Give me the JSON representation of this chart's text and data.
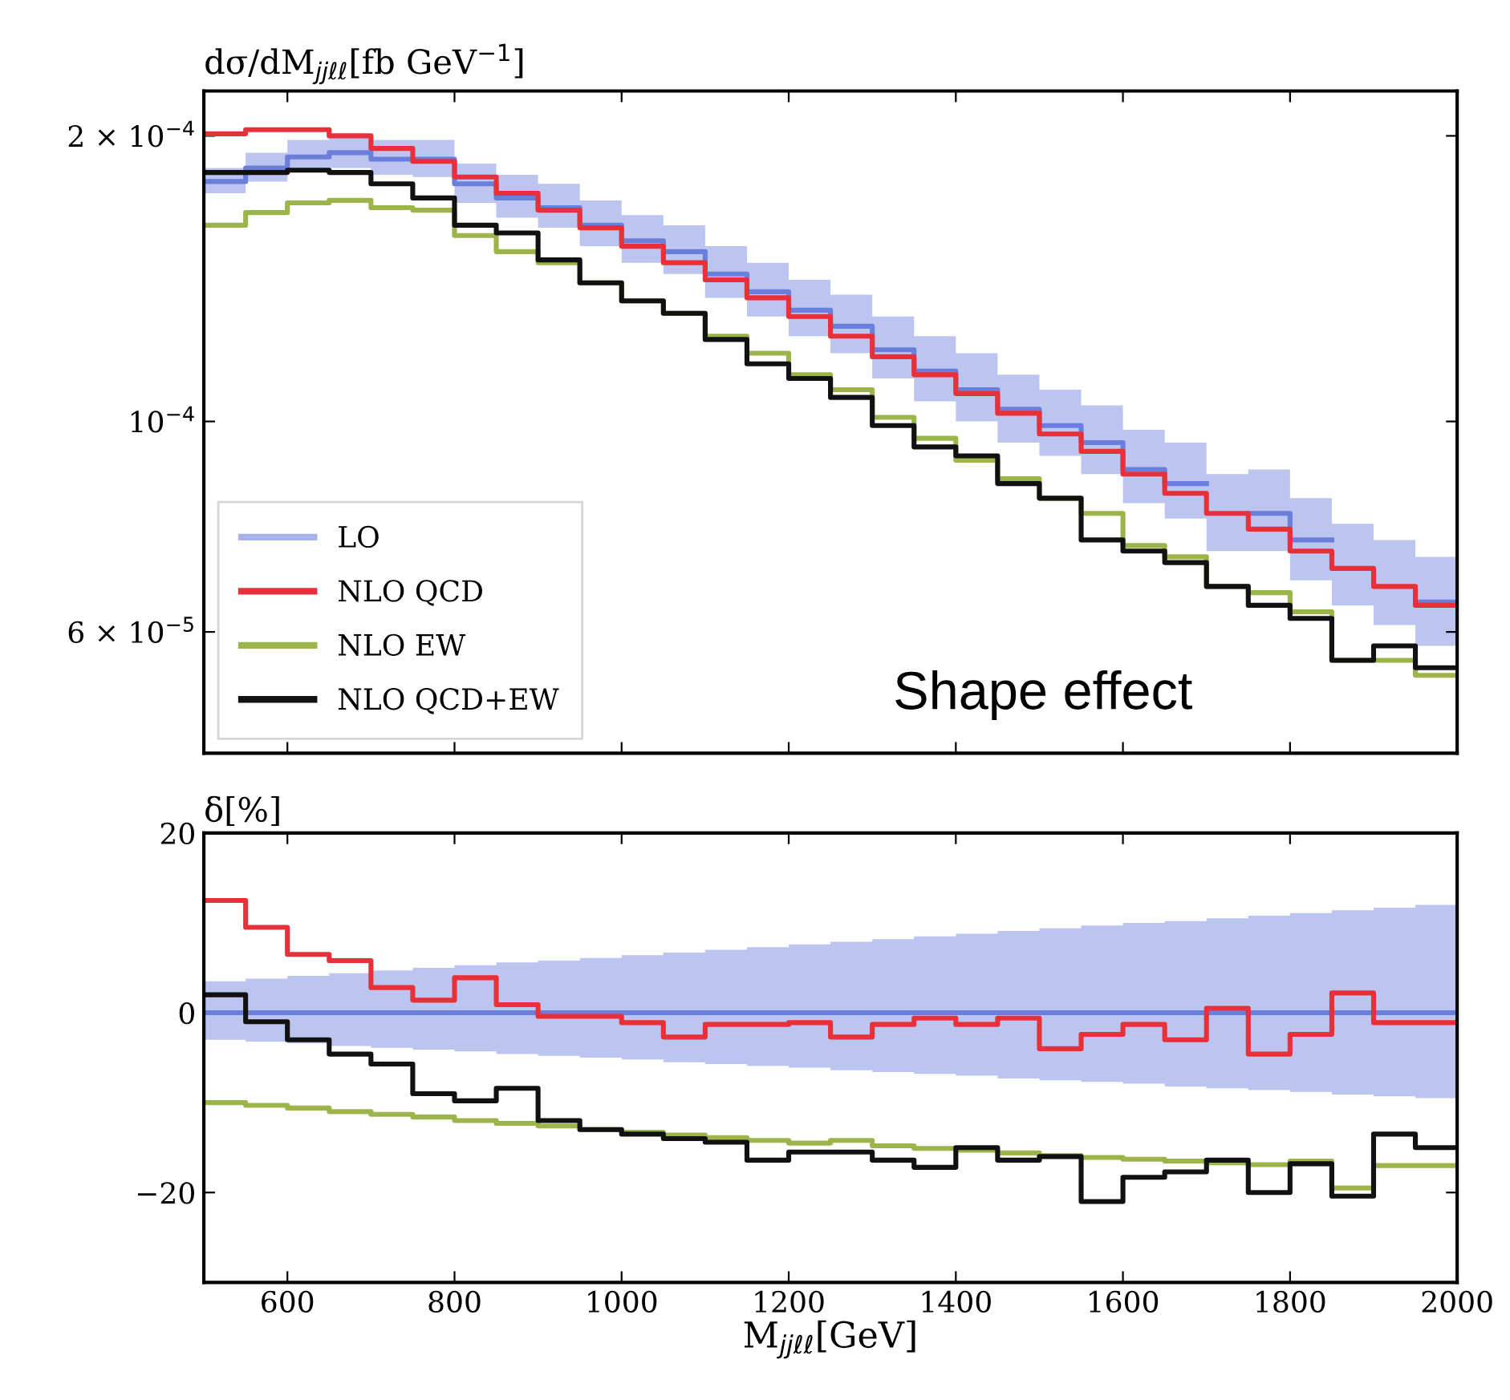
{
  "chart_data": [
    {
      "type": "step",
      "ylabel": "dσ/dM$_{jjℓℓ}$[fb GeV$^{−1}$]",
      "log": "y",
      "legend": "bottom left",
      "tick_labels": "y",
      "annotations": [
        "Shape effect"
      ],
      "x": [
        500,
        550,
        600,
        650,
        700,
        750,
        800,
        850,
        900,
        950,
        1000,
        1050,
        1100,
        1150,
        1200,
        1250,
        1300,
        1350,
        1400,
        1450,
        1500,
        1550,
        1600,
        1650,
        1700,
        1750,
        1800,
        1850,
        1900,
        1950,
        2000
      ],
      "xlim": [
        500,
        2000
      ],
      "xticks": [
        600,
        800,
        1000,
        1200,
        1400,
        1600,
        1800,
        2000
      ],
      "ylim": [
        4.47e-05,
        0.000223
      ],
      "yticks": [
        {
          "value": 6e-05,
          "label": "6 × 10$^{−5}$"
        },
        {
          "value": 0.0001,
          "label": "10$^{−4}$"
        },
        {
          "value": 0.0002,
          "label": "2 × 10$^{−4}$"
        }
      ],
      "series": [
        {
          "name": "LO",
          "color": "#6a7fdb",
          "values": [
            0.000179,
            0.000185,
            0.00019,
            0.000192,
            0.000189,
            0.000189,
            0.000178,
            0.000172,
            0.000168,
            0.000161,
            0.000155,
            0.000151,
            0.000143,
            0.000137,
            0.000131,
            0.000126,
            0.000119,
            0.000113,
            0.000108,
            0.000103,
            9.9e-05,
            9.5e-05,
            8.9e-05,
            8.6e-05,
            null,
            8e-05,
            7.5e-05,
            null,
            null,
            6.45e-05,
            6.45e-05
          ],
          "upper": [
            0.000185,
            0.000192,
            0.000198,
            0.0002,
            0.000198,
            0.000198,
            0.000187,
            0.000182,
            0.000178,
            0.000171,
            0.000165,
            0.000161,
            0.000153,
            0.000147,
            0.000141,
            0.000136,
            0.000129,
            0.000123,
            0.000118,
            0.000112,
            0.000108,
            0.000104,
            9.8e-05,
            9.5e-05,
            8.8e-05,
            8.9e-05,
            8.3e-05,
            7.8e-05,
            7.5e-05,
            7.2e-05,
            7.2e-05
          ],
          "lower": [
            0.000174,
            0.000179,
            0.000184,
            0.000185,
            0.000182,
            0.000181,
            0.00017,
            0.000164,
            0.00016,
            0.000153,
            0.000147,
            0.000143,
            0.000135,
            0.000129,
            0.000123,
            0.000118,
            0.000111,
            0.000105,
            0.0001,
            9.5e-05,
            9.2e-05,
            8.8e-05,
            8.2e-05,
            7.9e-05,
            7.3e-05,
            7.3e-05,
            6.8e-05,
            6.4e-05,
            6.1e-05,
            5.8e-05,
            5.8e-05
          ]
        },
        {
          "name": "NLO QCD",
          "color": "#e8303a",
          "values": [
            0.000201,
            0.000203,
            0.000203,
            0.0002,
            0.000194,
            0.000188,
            0.000181,
            0.000174,
            0.000167,
            0.00016,
            0.000153,
            0.000147,
            0.000141,
            0.000135,
            0.000129,
            0.000123,
            0.000117,
            0.000112,
            0.000107,
            0.000102,
            9.7e-05,
            9.3e-05,
            8.8e-05,
            8.4e-05,
            8e-05,
            7.7e-05,
            7.3e-05,
            7e-05,
            6.7e-05,
            6.4e-05,
            6.4e-05
          ]
        },
        {
          "name": "NLO EW",
          "color": "#9bb54a",
          "values": [
            0.000161,
            0.000166,
            0.00017,
            0.000171,
            0.000168,
            0.000167,
            0.000157,
            0.000151,
            0.000147,
            0.00014,
            0.000134,
            0.00013,
            0.000123,
            0.000118,
            0.000112,
            0.000108,
            0.000101,
            9.6e-05,
            9.1e-05,
            8.7e-05,
            8.3e-05,
            8e-05,
            7.4e-05,
            7.2e-05,
            6.7e-05,
            6.6e-05,
            6.3e-05,
            5.6e-05,
            5.6e-05,
            5.4e-05,
            5.4e-05
          ]
        },
        {
          "name": "NLO QCD+EW",
          "color": "#111111",
          "values": [
            0.000183,
            0.000183,
            0.000184,
            0.000183,
            0.000178,
            0.000172,
            0.000161,
            0.000158,
            0.000148,
            0.00014,
            0.000134,
            0.00013,
            0.000122,
            0.000115,
            0.000111,
            0.000106,
            9.9e-05,
            9.4e-05,
            9.2e-05,
            8.6e-05,
            8.3e-05,
            7.5e-05,
            7.3e-05,
            7.1e-05,
            6.7e-05,
            6.4e-05,
            6.2e-05,
            5.6e-05,
            5.8e-05,
            5.5e-05,
            5.5e-05
          ]
        }
      ]
    },
    {
      "type": "step",
      "ylabel": "δ[%]",
      "xlabel": "M$_{jjℓℓ}$[GeV]",
      "x": [
        500,
        550,
        600,
        650,
        700,
        750,
        800,
        850,
        900,
        950,
        1000,
        1050,
        1100,
        1150,
        1200,
        1250,
        1300,
        1350,
        1400,
        1450,
        1500,
        1550,
        1600,
        1650,
        1700,
        1750,
        1800,
        1850,
        1900,
        1950,
        2000
      ],
      "xlim": [
        500,
        2000
      ],
      "xticks": [
        600,
        800,
        1000,
        1200,
        1400,
        1600,
        1800,
        2000
      ],
      "ylim": [
        -30,
        20
      ],
      "yticks": [
        {
          "value": -20,
          "label": "−20"
        },
        0,
        20
      ],
      "series": [
        {
          "color": "#6a7fdb",
          "values": [
            0,
            0,
            0,
            0,
            0,
            0,
            0,
            0,
            0,
            0,
            0,
            0,
            0,
            0,
            0,
            0,
            0,
            0,
            0,
            0,
            0,
            0,
            0,
            0,
            0,
            0,
            0,
            0,
            0,
            0,
            0
          ],
          "upper": [
            3.5,
            3.8,
            4.1,
            4.4,
            4.7,
            5.0,
            5.3,
            5.6,
            5.8,
            6.1,
            6.4,
            6.7,
            7.0,
            7.3,
            7.6,
            7.9,
            8.2,
            8.5,
            8.8,
            9.1,
            9.4,
            9.7,
            10.0,
            10.2,
            10.5,
            10.8,
            11.1,
            11.4,
            11.7,
            12,
            12
          ],
          "lower": [
            -3,
            -3.2,
            -3.4,
            -3.7,
            -3.9,
            -4.1,
            -4.3,
            -4.6,
            -4.8,
            -5.0,
            -5.2,
            -5.5,
            -5.7,
            -5.9,
            -6.1,
            -6.4,
            -6.6,
            -6.8,
            -7.0,
            -7.3,
            -7.5,
            -7.7,
            -7.9,
            -8.2,
            -8.4,
            -8.6,
            -8.8,
            -9.1,
            -9.3,
            -9.5,
            -9.5
          ]
        },
        {
          "color": "#e8303a",
          "values": [
            12.5,
            9.5,
            6.5,
            5.8,
            2.8,
            1.4,
            3.9,
            0.9,
            -0.4,
            -0.4,
            -1.1,
            -2.7,
            -1.3,
            -1.3,
            -1.1,
            -2.7,
            -1.3,
            -0.6,
            -1.3,
            -0.6,
            -4.0,
            -2.4,
            -1.3,
            -3.0,
            0.5,
            -4.6,
            -2.4,
            2.2,
            -1.1,
            -1.1,
            -1.1
          ]
        },
        {
          "color": "#9bb54a",
          "values": [
            -10,
            -10.3,
            -10.6,
            -11,
            -11.3,
            -11.6,
            -12,
            -12.3,
            -12.6,
            -13,
            -13.3,
            -13.6,
            -13.9,
            -14.2,
            -14.5,
            -14.2,
            -14.8,
            -15.1,
            -15.3,
            -15.6,
            -15.9,
            -16.1,
            -16.3,
            -16.5,
            -16.7,
            -16.9,
            -16.5,
            -19.5,
            -17,
            -17,
            -17
          ]
        },
        {
          "color": "#111111",
          "values": [
            2,
            -1,
            -3,
            -4.6,
            -5.7,
            -9,
            -9.8,
            -8.4,
            -12,
            -13,
            -13.5,
            -14,
            -14.4,
            -16.4,
            -15.5,
            -15.5,
            -16.4,
            -17.2,
            -15,
            -16.4,
            -16,
            -21,
            -18.3,
            -17.7,
            -16.4,
            -20,
            -16.8,
            -20.4,
            -13.5,
            -15,
            -15
          ]
        }
      ]
    }
  ]
}
